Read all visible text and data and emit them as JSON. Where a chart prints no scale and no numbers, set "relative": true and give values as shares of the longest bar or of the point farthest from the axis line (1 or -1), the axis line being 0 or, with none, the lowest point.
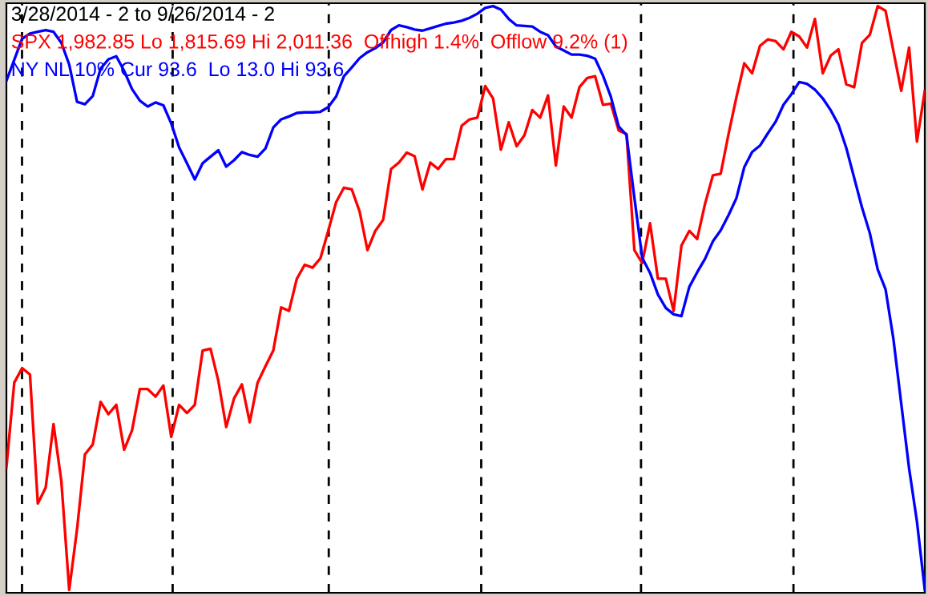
{
  "chart_data": {
    "type": "line",
    "title": "3/28/2014 - 2 to 9/26/2014 - 2",
    "relative": true,
    "marker": "none",
    "line_style": "solid",
    "categories": [
      null,
      null,
      null,
      null,
      null,
      null,
      null,
      null,
      null,
      null,
      null,
      null,
      null,
      null,
      null,
      null,
      null,
      null,
      null,
      null,
      null,
      null,
      null,
      null,
      null,
      null,
      null,
      null,
      null,
      null,
      null,
      null,
      null,
      null,
      null,
      null,
      null,
      null,
      null,
      null,
      null,
      null,
      null,
      null,
      null,
      null,
      null,
      null,
      null,
      null,
      null,
      null,
      null,
      null,
      null,
      null,
      null,
      null,
      null,
      null,
      null,
      null,
      null,
      null,
      null,
      null,
      null,
      null,
      null,
      null,
      null,
      null,
      null,
      null,
      null,
      null,
      null,
      null,
      null,
      null,
      null,
      null,
      null,
      null,
      null,
      null,
      null,
      null,
      null,
      null,
      null,
      null,
      null,
      null,
      null,
      null,
      null,
      null,
      null,
      null,
      null,
      null,
      null,
      null,
      null,
      null,
      null,
      null,
      null,
      null,
      null,
      null,
      null,
      null,
      null,
      null,
      null,
      null
    ],
    "series": [
      {
        "name": "SPX 1,982.85 Lo 1,815.69 Hi 2,011.36  Offhigh 1.4%  Offlow 9.2% (1)",
        "color": "#ff0000",
        "values": [
          0.21,
          0.355,
          0.38,
          0.369,
          0.148,
          0.175,
          0.284,
          0.186,
          0,
          0.104,
          0.232,
          0.249,
          0.322,
          0.301,
          0.317,
          0.24,
          0.273,
          0.344,
          0.344,
          0.331,
          0.35,
          0.262,
          0.317,
          0.303,
          0.317,
          0.41,
          0.413,
          0.358,
          0.279,
          0.328,
          0.352,
          0.287,
          0.355,
          0.383,
          0.41,
          0.484,
          0.478,
          0.533,
          0.557,
          0.552,
          0.568,
          0.615,
          0.664,
          0.689,
          0.686,
          0.648,
          0.582,
          0.615,
          0.634,
          0.721,
          0.732,
          0.749,
          0.743,
          0.686,
          0.732,
          0.721,
          0.738,
          0.738,
          0.795,
          0.806,
          0.809,
          0.863,
          0.842,
          0.754,
          0.801,
          0.76,
          0.779,
          0.822,
          0.809,
          0.847,
          0.727,
          0.828,
          0.809,
          0.861,
          0.877,
          0.88,
          0.831,
          0.833,
          0.787,
          0.781,
          0.582,
          0.56,
          0.628,
          0.533,
          0.533,
          0.478,
          0.59,
          0.615,
          0.601,
          0.661,
          0.71,
          0.713,
          0.781,
          0.844,
          0.902,
          0.885,
          0.932,
          0.943,
          0.94,
          0.926,
          0.956,
          0.948,
          0.929,
          0.978,
          0.885,
          0.915,
          0.926,
          0.866,
          0.861,
          0.937,
          0.951,
          1,
          0.992,
          0.923,
          0.855,
          0.929,
          0.768,
          0.855
        ]
      },
      {
        "name": "NY NL 10% Cur 93.6  Lo 13.0 Hi 93.6",
        "color": "#0000ff",
        "values": [
          0.872,
          0.908,
          0.944,
          0.953,
          0.956,
          0.959,
          0.956,
          0.937,
          0.9,
          0.836,
          0.832,
          0.846,
          0.893,
          0.909,
          0.914,
          0.889,
          0.858,
          0.838,
          0.828,
          0.835,
          0.83,
          0.799,
          0.758,
          0.731,
          0.703,
          0.731,
          0.742,
          0.753,
          0.725,
          0.736,
          0.75,
          0.745,
          0.742,
          0.756,
          0.792,
          0.806,
          0.811,
          0.817,
          0.818,
          0.818,
          0.819,
          0.827,
          0.845,
          0.88,
          0.895,
          0.911,
          0.921,
          0.928,
          0.938,
          0.959,
          0.967,
          0.964,
          0.96,
          0.958,
          0.962,
          0.966,
          0.97,
          0.972,
          0.975,
          0.98,
          0.987,
          0.997,
          1,
          0.994,
          0.978,
          0.967,
          0.966,
          0.965,
          0.956,
          0.95,
          0.931,
          0.924,
          0.917,
          0.917,
          0.915,
          0.91,
          0.881,
          0.845,
          0.794,
          0.779,
          0.672,
          0.569,
          0.543,
          0.506,
          0.483,
          0.472,
          0.469,
          0.519,
          0.544,
          0.567,
          0.597,
          0.616,
          0.642,
          0.671,
          0.724,
          0.75,
          0.761,
          0.782,
          0.802,
          0.831,
          0.849,
          0.87,
          0.867,
          0.857,
          0.842,
          0.822,
          0.797,
          0.757,
          0.706,
          0.655,
          0.611,
          0.549,
          0.515,
          0.43,
          0.319,
          0.208,
          0.117,
          0
        ]
      }
    ]
  }
}
